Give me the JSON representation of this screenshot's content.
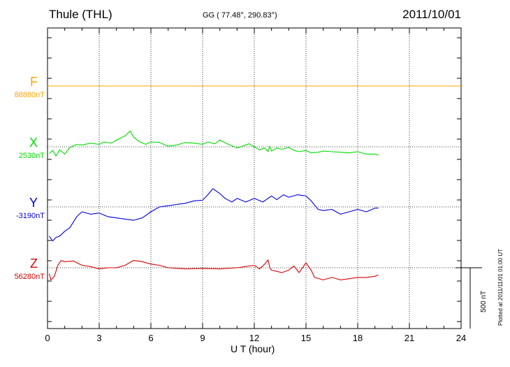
{
  "header": {
    "station": "Thule (THL)",
    "coords": "GG ( 77.48°, 290.83°)",
    "date": "2011/10/01"
  },
  "footer": {
    "plotted": "Plotted at 2011/11/01 01:00 UT",
    "scale": "500 nT"
  },
  "chart_data": {
    "type": "line",
    "title": "Thule (THL)",
    "xlabel": "U T (hour)",
    "ylabel": "",
    "xlim": [
      0,
      24
    ],
    "xticks": [
      0,
      3,
      6,
      9,
      12,
      15,
      18,
      21,
      24
    ],
    "x_tick_labels": [
      "0",
      "3",
      "6",
      "9",
      "12",
      "15",
      "18",
      "21",
      "24"
    ],
    "grid": true,
    "scale_bar_nT": 500,
    "series": [
      {
        "name": "F",
        "base_label": "88880nT",
        "color": "#FFA500",
        "x": [
          0,
          24
        ],
        "y": [
          0,
          0
        ]
      },
      {
        "name": "X",
        "base_label": "2530nT",
        "color": "#00DD00",
        "x": [
          0.1,
          0.3,
          0.5,
          0.7,
          1.0,
          1.3,
          1.7,
          2.0,
          2.5,
          3.0,
          3.3,
          3.7,
          4.0,
          4.5,
          4.8,
          5.0,
          5.3,
          5.7,
          6.0,
          6.5,
          7.0,
          7.5,
          8.0,
          8.5,
          9.0,
          9.3,
          9.7,
          10.0,
          10.5,
          11.0,
          11.3,
          11.7,
          12.0,
          12.3,
          12.6,
          12.8,
          12.9,
          13.0,
          13.3,
          13.6,
          14.0,
          14.3,
          14.6,
          15.0,
          15.3,
          15.7,
          16.0,
          16.5,
          17.0,
          17.5,
          18.0,
          18.5,
          19.0,
          19.2
        ],
        "y": [
          -55,
          -30,
          -75,
          -25,
          -60,
          -5,
          20,
          15,
          30,
          20,
          40,
          30,
          55,
          90,
          130,
          80,
          45,
          20,
          40,
          35,
          5,
          15,
          35,
          30,
          20,
          40,
          25,
          55,
          20,
          -10,
          5,
          25,
          0,
          -25,
          -10,
          -40,
          5,
          -35,
          -10,
          -20,
          -5,
          -30,
          -40,
          -30,
          -50,
          -45,
          -35,
          -40,
          -45,
          -50,
          -40,
          -60,
          -60,
          -70
        ]
      },
      {
        "name": "Y",
        "base_label": "-3190nT",
        "color": "#0000DD",
        "x": [
          0.1,
          0.3,
          0.5,
          0.7,
          1.0,
          1.3,
          1.7,
          2.0,
          2.5,
          3.0,
          3.5,
          4.0,
          4.5,
          5.0,
          5.5,
          6.0,
          6.5,
          7.0,
          7.5,
          8.0,
          8.5,
          9.0,
          9.3,
          9.6,
          10.0,
          10.3,
          10.7,
          11.0,
          11.5,
          12.0,
          12.5,
          13.0,
          13.3,
          13.7,
          14.0,
          14.5,
          15.0,
          15.3,
          15.7,
          16.0,
          16.5,
          17.0,
          17.5,
          18.0,
          18.5,
          19.0,
          19.2
        ],
        "y": [
          -240,
          -280,
          -250,
          -240,
          -200,
          -170,
          -80,
          -40,
          -60,
          -50,
          -80,
          -90,
          -100,
          -110,
          -90,
          -40,
          0,
          10,
          20,
          30,
          50,
          55,
          100,
          150,
          110,
          70,
          40,
          70,
          40,
          70,
          40,
          90,
          60,
          100,
          80,
          100,
          90,
          50,
          -20,
          -30,
          -20,
          -60,
          -40,
          -20,
          -40,
          -10,
          -10
        ]
      },
      {
        "name": "Z",
        "base_label": "56280nT",
        "color": "#DD0000",
        "x": [
          0.1,
          0.2,
          0.4,
          0.6,
          0.8,
          1.0,
          1.5,
          2.0,
          2.5,
          3.0,
          3.5,
          4.0,
          4.5,
          5.0,
          5.5,
          6.0,
          6.5,
          7.0,
          8.0,
          9.0,
          10.0,
          11.0,
          11.5,
          12.0,
          12.3,
          12.6,
          12.8,
          12.9,
          13.0,
          13.3,
          13.6,
          14.0,
          14.3,
          14.6,
          15.0,
          15.3,
          15.5,
          16.0,
          16.5,
          17.0,
          17.5,
          18.0,
          18.5,
          19.0,
          19.2
        ],
        "y": [
          -50,
          -100,
          -70,
          20,
          60,
          50,
          55,
          20,
          10,
          -10,
          0,
          0,
          20,
          60,
          50,
          30,
          20,
          0,
          -10,
          -5,
          -10,
          0,
          10,
          20,
          -10,
          30,
          65,
          0,
          -20,
          -30,
          -40,
          -20,
          15,
          -40,
          40,
          -20,
          -80,
          -100,
          -80,
          -100,
          -90,
          -80,
          -80,
          -70,
          -60
        ]
      }
    ]
  }
}
